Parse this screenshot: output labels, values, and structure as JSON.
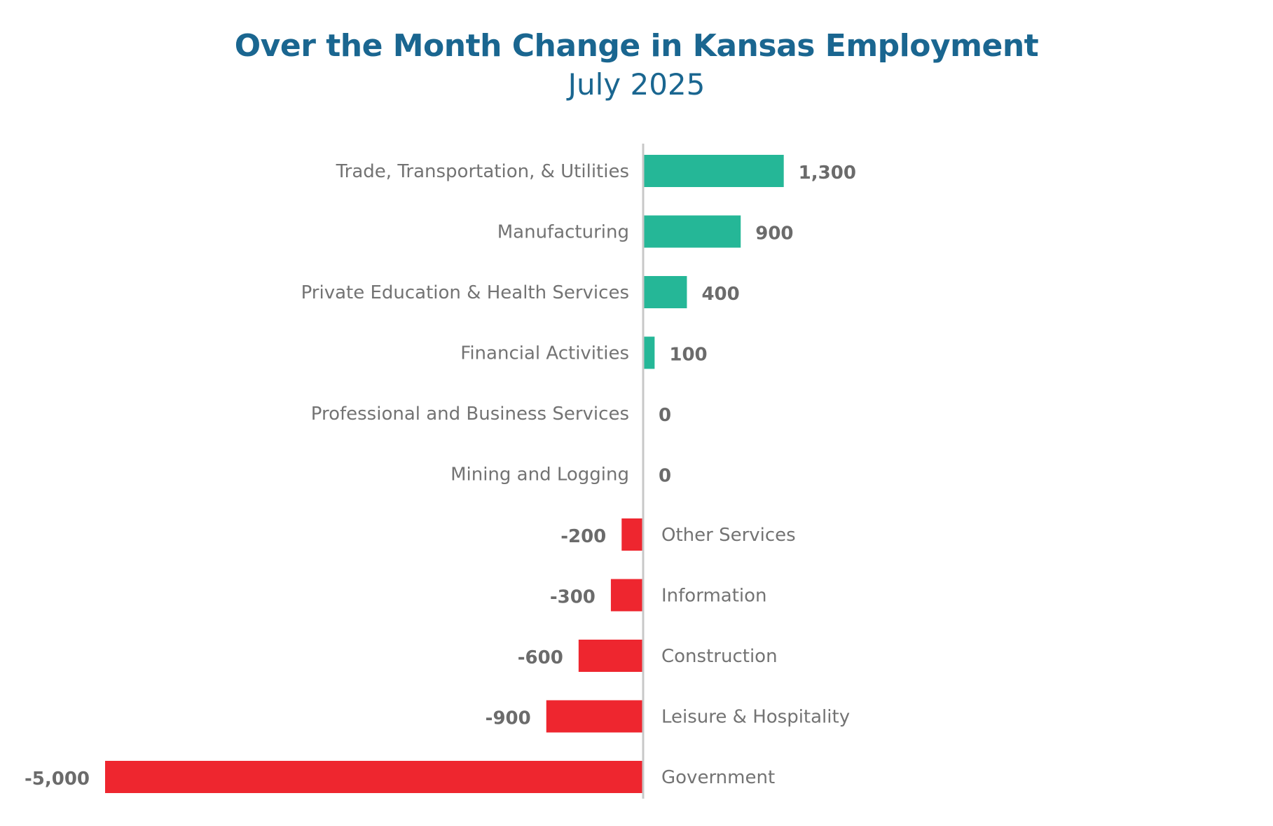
{
  "colors": {
    "title": "#1a6690",
    "positive": "#25b797",
    "negative": "#ee262f",
    "axis": "#c8c8c8"
  },
  "chart_data": {
    "type": "bar",
    "orientation": "horizontal",
    "title": "Over the Month Change in Kansas Employment",
    "subtitle": "July 2025",
    "xlabel": "",
    "ylabel": "",
    "xlim": [
      -5000,
      2000
    ],
    "grid": false,
    "categories": [
      "Trade, Transportation, & Utilities",
      "Manufacturing",
      "Private Education & Health Services",
      "Financial Activities",
      "Professional and Business Services",
      "Mining and Logging",
      "Other Services",
      "Information",
      "Construction",
      "Leisure & Hospitality",
      "Government"
    ],
    "values": [
      1300,
      900,
      400,
      100,
      0,
      0,
      -200,
      -300,
      -600,
      -900,
      -5000
    ],
    "value_labels": [
      "1,300",
      "900",
      "400",
      "100",
      "0",
      "0",
      "-200",
      "-300",
      "-600",
      "-900",
      "-5,000"
    ]
  }
}
